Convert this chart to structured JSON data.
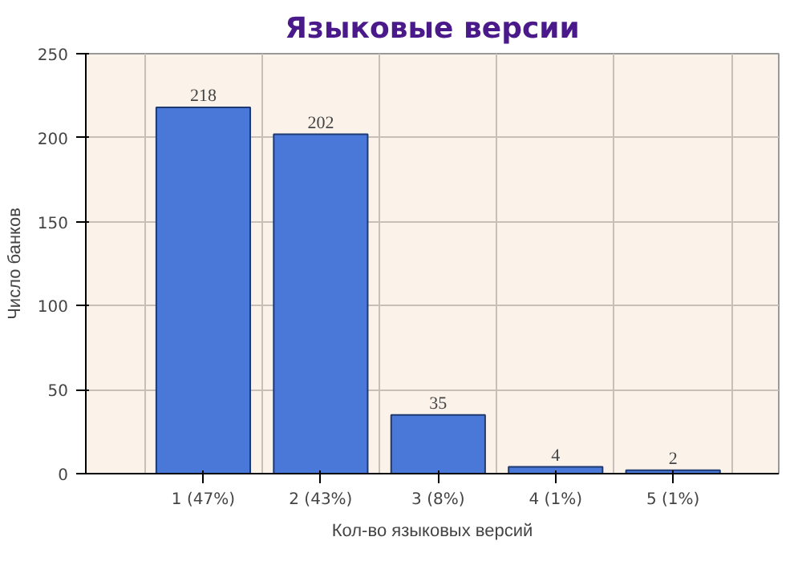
{
  "chart_data": {
    "type": "bar",
    "title": "Языковые версии",
    "xlabel": "Кол-во языковых версий",
    "ylabel": "Число банков",
    "categories": [
      "1 (47%)",
      "2 (43%)",
      "3 (8%)",
      "4 (1%)",
      "5 (1%)"
    ],
    "values": [
      218,
      202,
      35,
      4,
      2
    ],
    "color": "#4a78d8",
    "ylim": [
      0,
      250
    ],
    "yticks": [
      0,
      50,
      100,
      150,
      200,
      250
    ],
    "grid": true,
    "data_labels": true
  }
}
